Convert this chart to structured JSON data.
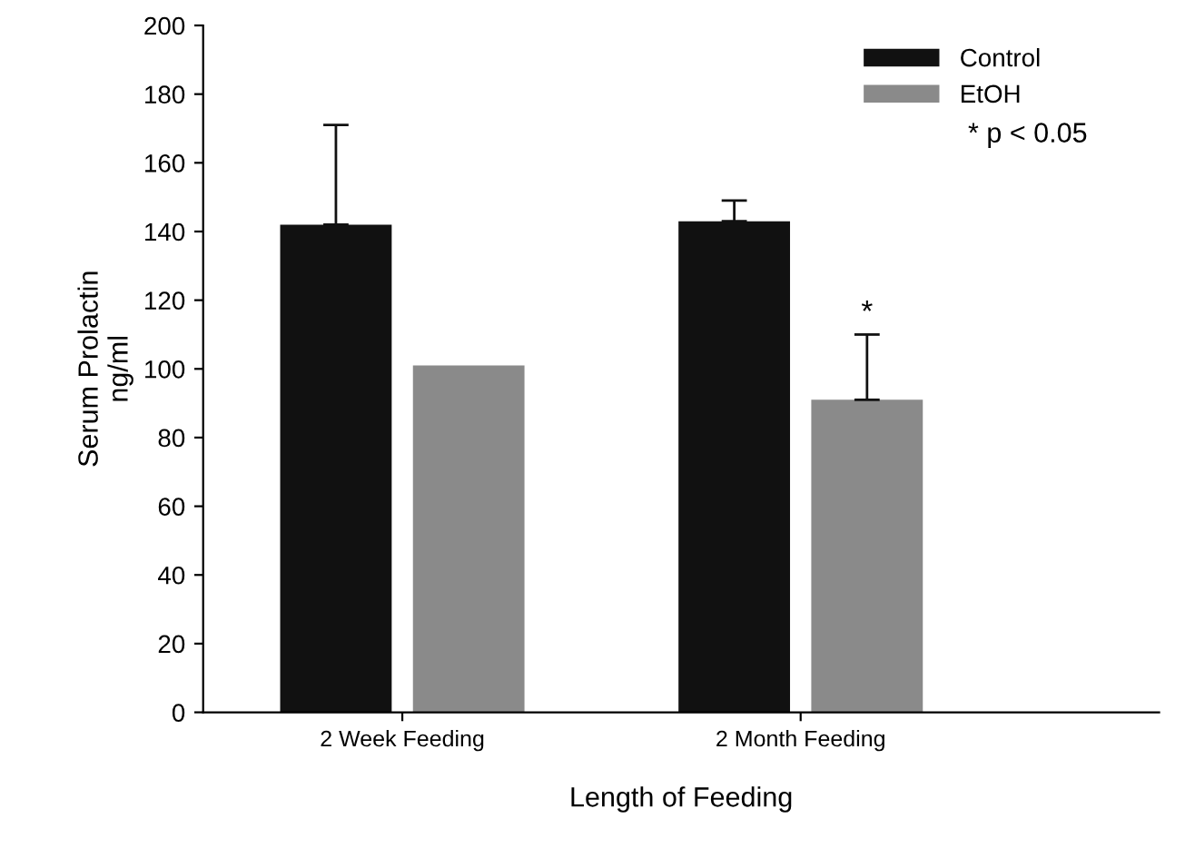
{
  "chart_data": {
    "type": "bar",
    "xlabel": "Length of Feeding",
    "ylabel": "Serum Prolactin\nng/ml",
    "categories": [
      "2 Week Feeding",
      "2 Month Feeding"
    ],
    "series": [
      {
        "name": "Control",
        "color": "#111111",
        "values": [
          142,
          143
        ],
        "errors": [
          [
            142,
            171
          ],
          [
            143,
            149
          ]
        ]
      },
      {
        "name": "EtOH",
        "color": "#8a8a8a",
        "values": [
          101,
          91
        ],
        "errors": [
          null,
          [
            91,
            110
          ]
        ],
        "value_labels": [
          null,
          "*"
        ]
      }
    ],
    "ylim": [
      0,
      200
    ],
    "yticks": [
      0,
      20,
      40,
      60,
      80,
      100,
      120,
      140,
      160,
      180,
      200
    ],
    "legend": "top right",
    "annotations": [
      "* p < 0.05"
    ],
    "grid": false
  }
}
